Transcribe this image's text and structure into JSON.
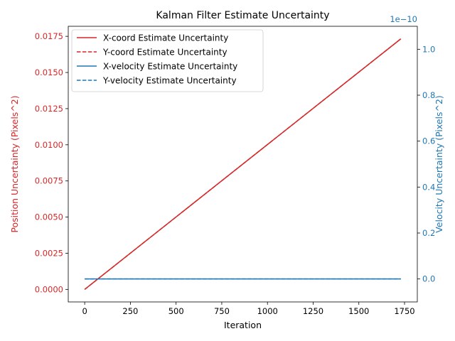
{
  "chart_data": {
    "type": "line",
    "title": "Kalman Filter Estimate Uncertainty",
    "xlabel": "Iteration",
    "ylabel_left": "Position Uncertainty (Pixels^2)",
    "ylabel_right": "Velocity Uncertainty (Pixels^2)",
    "right_axis_offset_label": "1e−10",
    "xlim": [
      -90,
      1820
    ],
    "x_ticks": [
      0,
      250,
      500,
      750,
      1000,
      1250,
      1500,
      1750
    ],
    "ylim_left": [
      -0.000867,
      0.018195
    ],
    "y_ticks_left": [
      0.0,
      0.0025,
      0.005,
      0.0075,
      0.01,
      0.0125,
      0.015,
      0.0175
    ],
    "y_tick_labels_left": [
      "0.0000",
      "0.0025",
      "0.0050",
      "0.0075",
      "0.0100",
      "0.0125",
      "0.0150",
      "0.0175"
    ],
    "ylim_right": [
      -0.1,
      1.1
    ],
    "y_ticks_right": [
      0.0,
      0.2,
      0.4,
      0.6,
      0.8,
      1.0
    ],
    "y_tick_labels_right": [
      "0.0",
      "0.2",
      "0.4",
      "0.6",
      "0.8",
      "1.0"
    ],
    "legend_position": "top-left",
    "grid": false,
    "colors": {
      "position": "#d62728",
      "velocity": "#1f77b4"
    },
    "series": [
      {
        "name": "X-coord Estimate Uncertainty",
        "axis": "left",
        "style": "solid",
        "color": "#d62728",
        "x": [
          0,
          1730
        ],
        "y": [
          0.0,
          0.01733
        ]
      },
      {
        "name": "Y-coord Estimate Uncertainty",
        "axis": "left",
        "style": "dashed",
        "color": "#d62728",
        "x": [
          0,
          1730
        ],
        "y": [
          0.0,
          0.01733
        ]
      },
      {
        "name": "X-velocity Estimate Uncertainty",
        "axis": "right",
        "style": "solid",
        "color": "#1f77b4",
        "x": [
          0,
          1730
        ],
        "y": [
          0.0,
          0.0
        ]
      },
      {
        "name": "Y-velocity Estimate Uncertainty",
        "axis": "right",
        "style": "dashed",
        "color": "#1f77b4",
        "x": [
          0,
          1730
        ],
        "y": [
          0.0,
          0.0
        ]
      }
    ]
  }
}
